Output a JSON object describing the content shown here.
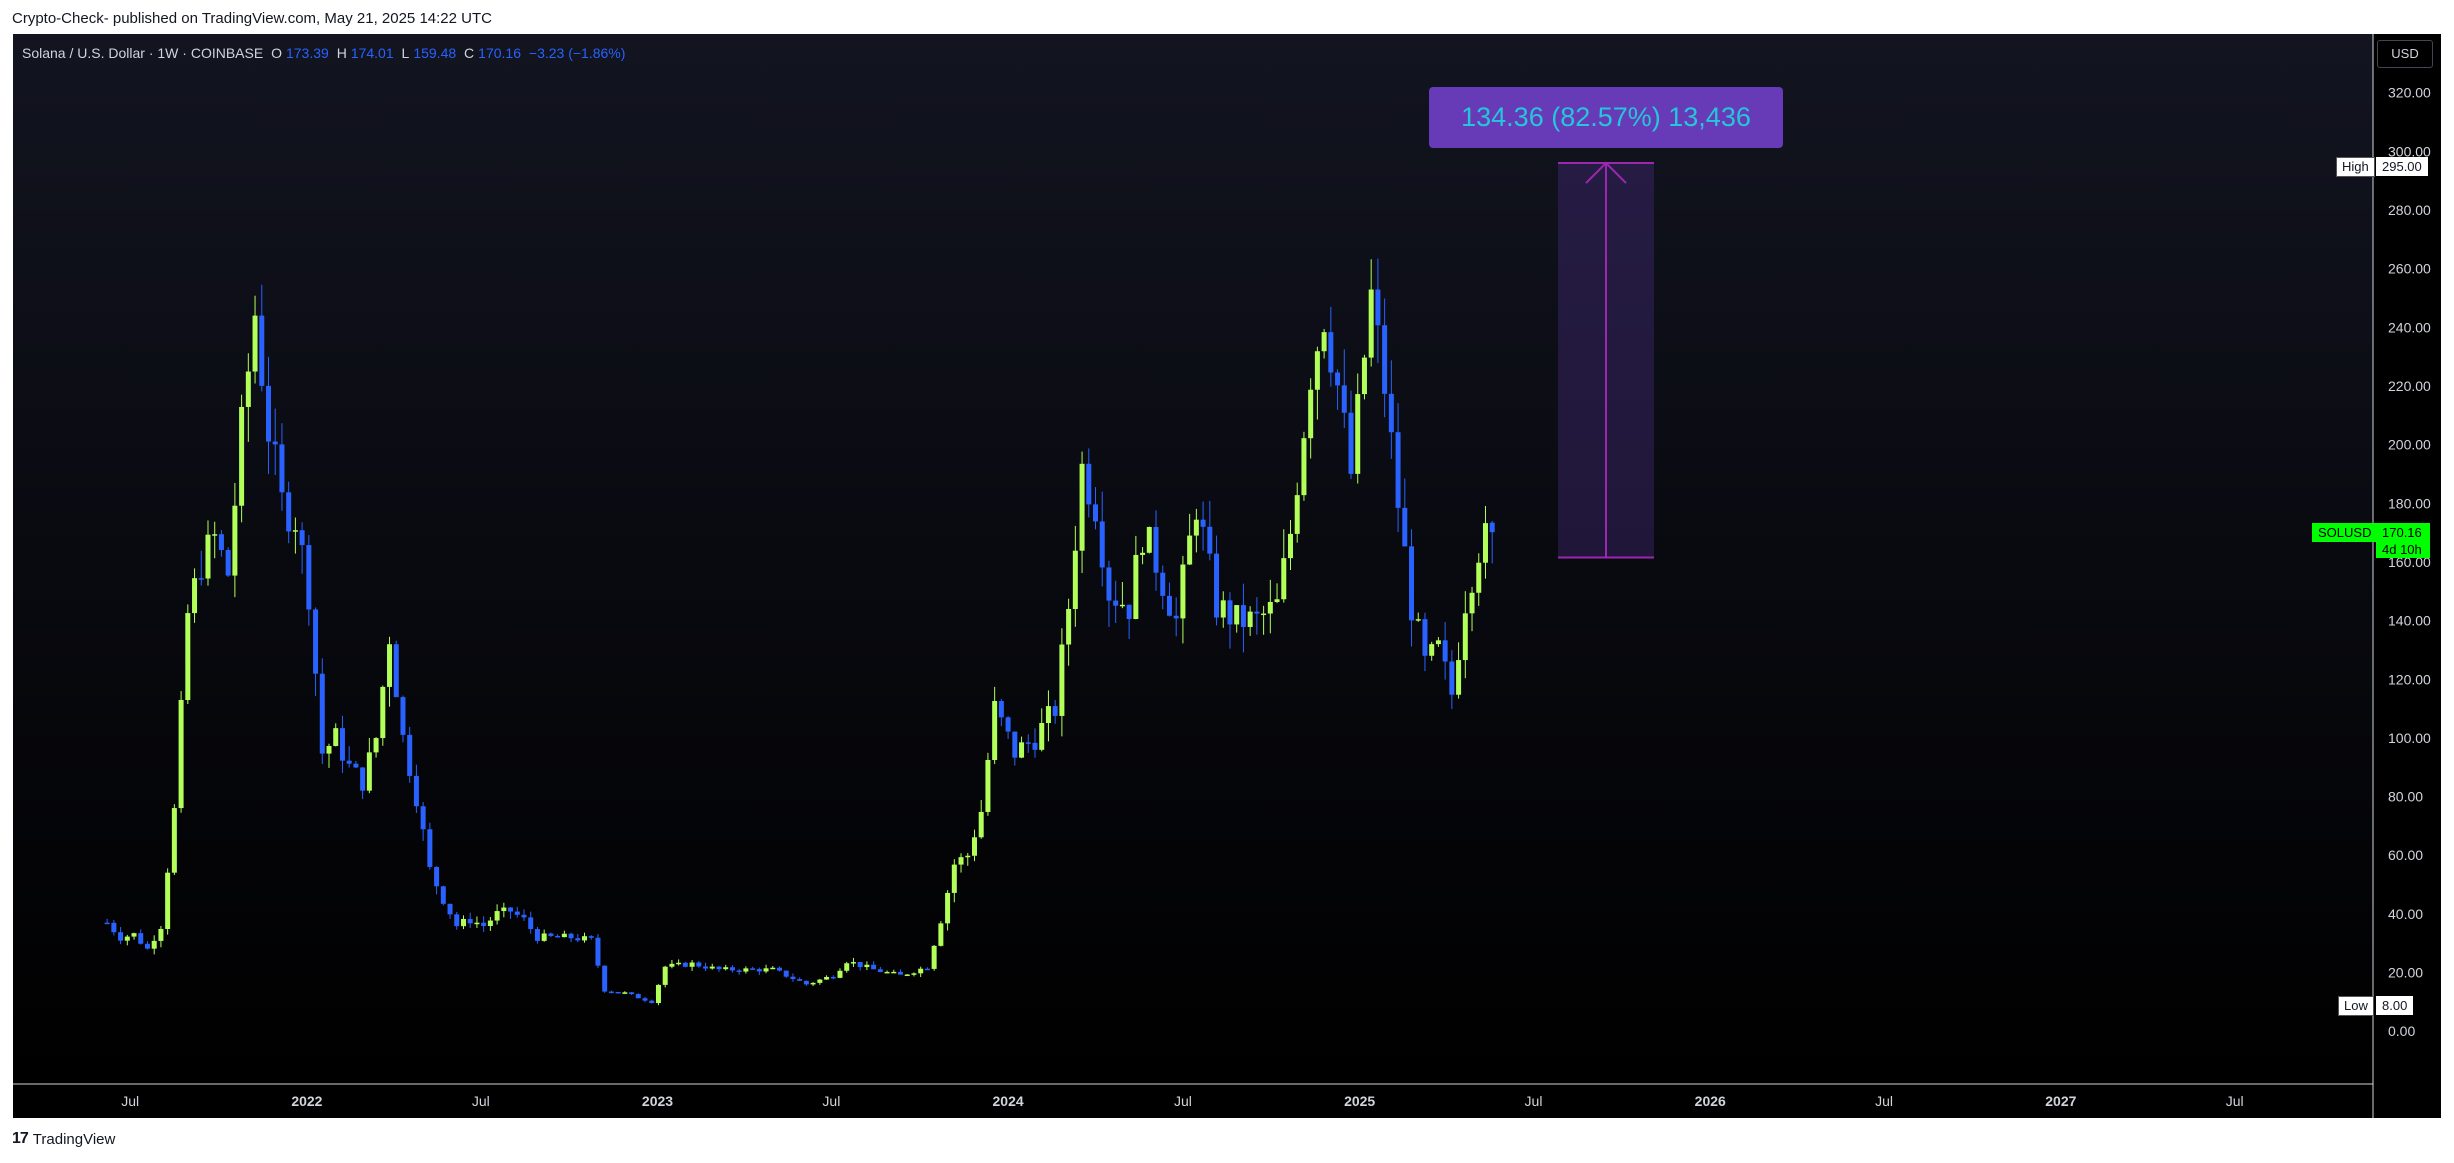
{
  "header": {
    "text": "Crypto-Check- published on TradingView.com, May 21, 2025 14:22 UTC"
  },
  "legend": {
    "symbol": "Solana / U.S. Dollar · 1W · COINBASE",
    "o_label": "O",
    "o_value": "173.39",
    "h_label": "H",
    "h_value": "174.01",
    "l_label": "L",
    "l_value": "159.48",
    "c_label": "C",
    "c_value": "170.16",
    "change": "−3.23 (−1.86%)"
  },
  "currency_button": "USD",
  "measure": {
    "label": "134.36 (82.57%) 13,436",
    "from_price": 161.5,
    "to_price": 296
  },
  "price_tags": {
    "high_label": "High",
    "high_value": "295.00",
    "low_label": "Low",
    "low_value": "8.00",
    "symbol": "SOLUSD",
    "last": "170.16",
    "countdown": "4d 10h"
  },
  "footer": {
    "logo": "17",
    "brand": "TradingView"
  },
  "colors": {
    "up": "#b2ff59",
    "down": "#2962ff",
    "measure": "#9c27b0",
    "tag_green": "#00ff00"
  },
  "chart_data": {
    "type": "candlestick",
    "title": "Solana / U.S. Dollar · 1W · COINBASE",
    "yaxis_ticks": [
      "0.00",
      "20.00",
      "40.00",
      "60.00",
      "80.00",
      "100.00",
      "120.00",
      "140.00",
      "160.00",
      "180.00",
      "200.00",
      "220.00",
      "240.00",
      "260.00",
      "280.00",
      "300.00",
      "320.00"
    ],
    "ylim": [
      -18,
      340
    ],
    "xaxis_ticks": [
      "Jul",
      "2022",
      "Jul",
      "2023",
      "Jul",
      "2024",
      "Jul",
      "2025",
      "Jul",
      "2026",
      "Jul",
      "2027",
      "Jul"
    ],
    "xlim": [
      "2021-03-01",
      "2027-11-22"
    ],
    "grid": false,
    "weekly_closes_approx": [
      [
        "2021-06-07",
        37
      ],
      [
        "2021-06-21",
        32
      ],
      [
        "2021-07-05",
        33
      ],
      [
        "2021-07-19",
        28
      ],
      [
        "2021-08-02",
        36
      ],
      [
        "2021-08-16",
        75
      ],
      [
        "2021-08-30",
        142
      ],
      [
        "2021-09-13",
        160
      ],
      [
        "2021-09-27",
        168
      ],
      [
        "2021-10-11",
        156
      ],
      [
        "2021-10-25",
        205
      ],
      [
        "2021-11-08",
        245
      ],
      [
        "2021-11-22",
        205
      ],
      [
        "2021-12-06",
        180
      ],
      [
        "2021-12-20",
        175
      ],
      [
        "2022-01-03",
        150
      ],
      [
        "2022-01-17",
        95
      ],
      [
        "2022-01-31",
        100
      ],
      [
        "2022-02-14",
        90
      ],
      [
        "2022-02-28",
        85
      ],
      [
        "2022-03-14",
        100
      ],
      [
        "2022-03-28",
        135
      ],
      [
        "2022-04-11",
        100
      ],
      [
        "2022-04-25",
        80
      ],
      [
        "2022-05-09",
        55
      ],
      [
        "2022-05-23",
        45
      ],
      [
        "2022-06-06",
        36
      ],
      [
        "2022-06-20",
        38
      ],
      [
        "2022-07-04",
        36
      ],
      [
        "2022-07-18",
        40
      ],
      [
        "2022-08-01",
        41
      ],
      [
        "2022-08-15",
        38
      ],
      [
        "2022-08-29",
        32
      ],
      [
        "2022-09-12",
        32
      ],
      [
        "2022-10-03",
        32
      ],
      [
        "2022-10-24",
        31
      ],
      [
        "2022-11-07",
        14
      ],
      [
        "2022-11-28",
        13
      ],
      [
        "2022-12-26",
        10
      ],
      [
        "2023-01-09",
        22
      ],
      [
        "2023-02-06",
        23
      ],
      [
        "2023-03-06",
        21
      ],
      [
        "2023-04-03",
        21
      ],
      [
        "2023-05-01",
        21
      ],
      [
        "2023-06-05",
        16
      ],
      [
        "2023-07-03",
        19
      ],
      [
        "2023-07-17",
        24
      ],
      [
        "2023-08-14",
        21
      ],
      [
        "2023-09-11",
        19
      ],
      [
        "2023-10-09",
        22
      ],
      [
        "2023-10-23",
        38
      ],
      [
        "2023-11-06",
        57
      ],
      [
        "2023-11-20",
        60
      ],
      [
        "2023-12-04",
        75
      ],
      [
        "2023-12-18",
        110
      ],
      [
        "2024-01-08",
        95
      ],
      [
        "2024-01-29",
        100
      ],
      [
        "2024-02-19",
        110
      ],
      [
        "2024-03-04",
        145
      ],
      [
        "2024-03-18",
        192
      ],
      [
        "2024-04-01",
        180
      ],
      [
        "2024-04-15",
        150
      ],
      [
        "2024-05-06",
        145
      ],
      [
        "2024-05-20",
        170
      ],
      [
        "2024-06-03",
        160
      ],
      [
        "2024-06-24",
        140
      ],
      [
        "2024-07-15",
        180
      ],
      [
        "2024-08-05",
        145
      ],
      [
        "2024-08-26",
        140
      ],
      [
        "2024-09-16",
        140
      ],
      [
        "2024-10-07",
        145
      ],
      [
        "2024-10-21",
        170
      ],
      [
        "2024-11-11",
        225
      ],
      [
        "2024-11-25",
        245
      ],
      [
        "2024-12-09",
        220
      ],
      [
        "2024-12-23",
        190
      ],
      [
        "2025-01-13",
        250
      ],
      [
        "2025-01-27",
        220
      ],
      [
        "2025-02-10",
        180
      ],
      [
        "2025-02-24",
        145
      ],
      [
        "2025-03-10",
        125
      ],
      [
        "2025-03-24",
        130
      ],
      [
        "2025-04-07",
        115
      ],
      [
        "2025-04-21",
        147
      ],
      [
        "2025-05-05",
        165
      ],
      [
        "2025-05-19",
        170.16
      ]
    ]
  }
}
